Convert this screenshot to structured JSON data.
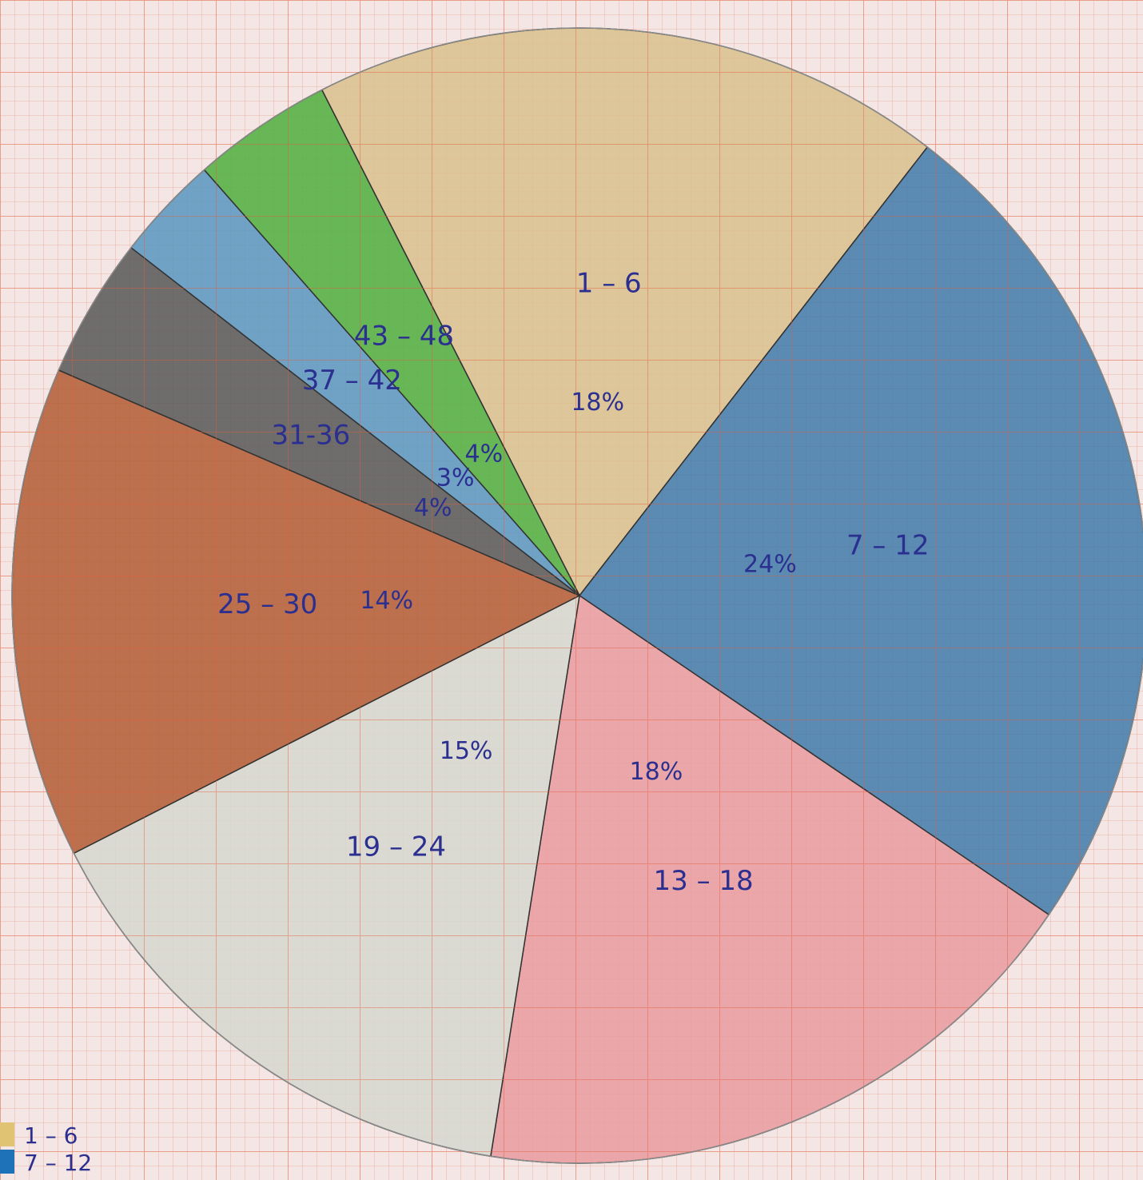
{
  "chart_data": {
    "type": "pie",
    "title": "",
    "legend_position": "bottom-left",
    "start_angle_deg": -117,
    "direction": "clockwise",
    "slices": [
      {
        "label": "1-6",
        "label_text": "1 – 6",
        "pct_text": "18%",
        "value": 18,
        "color": "#d9c08e"
      },
      {
        "label": "7-12",
        "label_text": "7 – 12",
        "pct_text": "24%",
        "value": 24,
        "color": "#3f79aa"
      },
      {
        "label": "13-18",
        "label_text": "13 – 18",
        "pct_text": "18%",
        "value": 18,
        "color": "#e79a9e"
      },
      {
        "label": "19-24",
        "label_text": "19 – 24",
        "pct_text": "15%",
        "value": 15,
        "color": "#d5d7cf"
      },
      {
        "label": "25-30",
        "label_text": "25 – 30",
        "pct_text": "14%",
        "value": 14,
        "color": "#b35a33"
      },
      {
        "label": "31-36",
        "label_text": "31-36",
        "pct_text": "4%",
        "value": 4,
        "color": "#575757"
      },
      {
        "label": "37-42",
        "label_text": "37 – 42",
        "pct_text": "3%",
        "value": 3,
        "color": "#5795bf"
      },
      {
        "label": "43-48",
        "label_text": "43 – 48",
        "pct_text": "4%",
        "value": 4,
        "color": "#4fae3e"
      }
    ],
    "legend": [
      {
        "label": "1 – 6",
        "color": "#e0c373"
      },
      {
        "label": "7 – 12",
        "color": "#1e73b8"
      }
    ]
  }
}
